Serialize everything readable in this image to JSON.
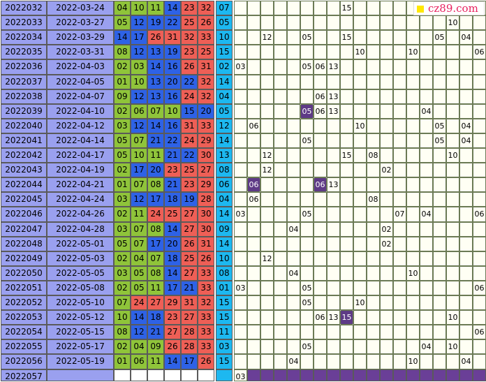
{
  "logo": {
    "text": "cz89.com",
    "square_color": "#ffe800",
    "text_color": "#e8205e"
  },
  "colors": {
    "id_bg": "#9aa0ef",
    "green": "#8fc43a",
    "blue": "#2e62e6",
    "red": "#ee5f56",
    "cyan": "#1db8f0",
    "empty": "#fffff4",
    "highlight": "#5e3a86"
  },
  "rows": [
    {
      "issue": "2022032",
      "date": "2022-03-24",
      "nums": [
        "04",
        "10",
        "11",
        "14",
        "23",
        "32"
      ],
      "blue": "07",
      "colors": [
        "g",
        "g",
        "g",
        "b",
        "r",
        "r"
      ],
      "marks": {
        "8": "15"
      }
    },
    {
      "issue": "2022033",
      "date": "2022-03-27",
      "nums": [
        "05",
        "12",
        "19",
        "22",
        "25",
        "26"
      ],
      "blue": "05",
      "colors": [
        "g",
        "b",
        "b",
        "b",
        "r",
        "r"
      ],
      "marks": {
        "16": "10"
      }
    },
    {
      "issue": "2022034",
      "date": "2022-03-29",
      "nums": [
        "14",
        "17",
        "26",
        "31",
        "32",
        "33"
      ],
      "blue": "10",
      "colors": [
        "b",
        "b",
        "r",
        "r",
        "r",
        "r"
      ],
      "marks": {
        "2": "12",
        "5": "05",
        "8": "15",
        "15": "05",
        "17": "04"
      }
    },
    {
      "issue": "2022035",
      "date": "2022-03-31",
      "nums": [
        "08",
        "12",
        "13",
        "19",
        "23",
        "25"
      ],
      "blue": "15",
      "colors": [
        "g",
        "b",
        "b",
        "b",
        "r",
        "r"
      ],
      "marks": {
        "9": "10",
        "13": "10",
        "18": "06"
      }
    },
    {
      "issue": "2022036",
      "date": "2022-04-03",
      "nums": [
        "02",
        "03",
        "14",
        "16",
        "26",
        "31"
      ],
      "blue": "02",
      "colors": [
        "g",
        "g",
        "b",
        "b",
        "r",
        "r"
      ],
      "marks": {
        "0": "03",
        "5": "05",
        "6": "06",
        "7": "13"
      }
    },
    {
      "issue": "2022037",
      "date": "2022-04-05",
      "nums": [
        "01",
        "10",
        "13",
        "20",
        "22",
        "32"
      ],
      "blue": "14",
      "colors": [
        "g",
        "g",
        "b",
        "b",
        "b",
        "r"
      ],
      "marks": {}
    },
    {
      "issue": "2022038",
      "date": "2022-04-07",
      "nums": [
        "09",
        "12",
        "13",
        "16",
        "24",
        "32"
      ],
      "blue": "04",
      "colors": [
        "g",
        "b",
        "b",
        "b",
        "r",
        "r"
      ],
      "marks": {
        "6": "06",
        "7": "13"
      }
    },
    {
      "issue": "2022039",
      "date": "2022-04-10",
      "nums": [
        "02",
        "06",
        "07",
        "10",
        "15",
        "20"
      ],
      "blue": "05",
      "colors": [
        "g",
        "g",
        "g",
        "g",
        "b",
        "b"
      ],
      "marks": {
        "5": "05",
        "6": "06",
        "7": "13",
        "14": "04"
      },
      "hl": [
        "5"
      ]
    },
    {
      "issue": "2022040",
      "date": "2022-04-12",
      "nums": [
        "03",
        "12",
        "14",
        "16",
        "31",
        "33"
      ],
      "blue": "12",
      "colors": [
        "g",
        "b",
        "b",
        "b",
        "r",
        "r"
      ],
      "marks": {
        "1": "06",
        "9": "10",
        "15": "05",
        "17": "04"
      }
    },
    {
      "issue": "2022041",
      "date": "2022-04-14",
      "nums": [
        "05",
        "07",
        "21",
        "22",
        "24",
        "29"
      ],
      "blue": "14",
      "colors": [
        "g",
        "g",
        "b",
        "b",
        "r",
        "r"
      ],
      "marks": {
        "5": "05",
        "15": "05",
        "17": "04"
      }
    },
    {
      "issue": "2022042",
      "date": "2022-04-17",
      "nums": [
        "05",
        "10",
        "11",
        "21",
        "22",
        "30"
      ],
      "blue": "13",
      "colors": [
        "g",
        "g",
        "g",
        "b",
        "b",
        "r"
      ],
      "marks": {
        "2": "12",
        "8": "15",
        "10": "08",
        "16": "10"
      }
    },
    {
      "issue": "2022043",
      "date": "2022-04-19",
      "nums": [
        "02",
        "17",
        "20",
        "23",
        "25",
        "27"
      ],
      "blue": "08",
      "colors": [
        "g",
        "b",
        "b",
        "r",
        "r",
        "r"
      ],
      "marks": {
        "2": "12",
        "11": "02"
      }
    },
    {
      "issue": "2022044",
      "date": "2022-04-21",
      "nums": [
        "01",
        "07",
        "08",
        "21",
        "23",
        "29"
      ],
      "blue": "06",
      "colors": [
        "g",
        "g",
        "g",
        "b",
        "r",
        "r"
      ],
      "marks": {
        "1": "06",
        "6": "06",
        "7": "13"
      },
      "hl": [
        "1",
        "6"
      ]
    },
    {
      "issue": "2022045",
      "date": "2022-04-24",
      "nums": [
        "03",
        "12",
        "17",
        "18",
        "19",
        "28"
      ],
      "blue": "04",
      "colors": [
        "g",
        "b",
        "b",
        "b",
        "b",
        "r"
      ],
      "marks": {
        "1": "06",
        "10": "08"
      }
    },
    {
      "issue": "2022046",
      "date": "2022-04-26",
      "nums": [
        "02",
        "11",
        "24",
        "25",
        "27",
        "30"
      ],
      "blue": "14",
      "colors": [
        "g",
        "g",
        "r",
        "r",
        "r",
        "r"
      ],
      "marks": {
        "0": "03",
        "5": "05",
        "12": "07",
        "14": "04",
        "18": "06"
      }
    },
    {
      "issue": "2022047",
      "date": "2022-04-28",
      "nums": [
        "03",
        "07",
        "08",
        "14",
        "27",
        "30"
      ],
      "blue": "09",
      "colors": [
        "g",
        "g",
        "g",
        "b",
        "r",
        "r"
      ],
      "marks": {
        "4": "04",
        "11": "02"
      }
    },
    {
      "issue": "2022048",
      "date": "2022-05-01",
      "nums": [
        "05",
        "07",
        "17",
        "20",
        "26",
        "31"
      ],
      "blue": "14",
      "colors": [
        "g",
        "g",
        "b",
        "b",
        "r",
        "r"
      ],
      "marks": {
        "11": "02"
      }
    },
    {
      "issue": "2022049",
      "date": "2022-05-03",
      "nums": [
        "02",
        "04",
        "07",
        "18",
        "25",
        "26"
      ],
      "blue": "10",
      "colors": [
        "g",
        "g",
        "g",
        "b",
        "r",
        "r"
      ],
      "marks": {
        "2": "12"
      }
    },
    {
      "issue": "2022050",
      "date": "2022-05-05",
      "nums": [
        "03",
        "05",
        "08",
        "14",
        "27",
        "33"
      ],
      "blue": "08",
      "colors": [
        "g",
        "g",
        "g",
        "b",
        "r",
        "r"
      ],
      "marks": {
        "4": "04",
        "13": "10"
      }
    },
    {
      "issue": "2022051",
      "date": "2022-05-08",
      "nums": [
        "02",
        "05",
        "11",
        "17",
        "21",
        "33"
      ],
      "blue": "01",
      "colors": [
        "g",
        "g",
        "g",
        "b",
        "b",
        "r"
      ],
      "marks": {
        "0": "03",
        "5": "05",
        "18": "06"
      }
    },
    {
      "issue": "2022052",
      "date": "2022-05-10",
      "nums": [
        "07",
        "24",
        "27",
        "29",
        "31",
        "32"
      ],
      "blue": "15",
      "colors": [
        "g",
        "r",
        "r",
        "r",
        "r",
        "r"
      ],
      "marks": {
        "5": "05",
        "9": "10"
      }
    },
    {
      "issue": "2022053",
      "date": "2022-05-12",
      "nums": [
        "10",
        "14",
        "18",
        "23",
        "27",
        "33"
      ],
      "blue": "15",
      "colors": [
        "g",
        "b",
        "b",
        "r",
        "r",
        "r"
      ],
      "marks": {
        "6": "06",
        "7": "13",
        "8": "15",
        "16": "10"
      },
      "hl": [
        "8"
      ]
    },
    {
      "issue": "2022054",
      "date": "2022-05-15",
      "nums": [
        "08",
        "12",
        "21",
        "27",
        "28",
        "33"
      ],
      "blue": "11",
      "colors": [
        "g",
        "b",
        "b",
        "r",
        "r",
        "r"
      ],
      "marks": {
        "18": "06"
      }
    },
    {
      "issue": "2022055",
      "date": "2022-05-17",
      "nums": [
        "02",
        "04",
        "09",
        "26",
        "28",
        "33"
      ],
      "blue": "03",
      "colors": [
        "g",
        "g",
        "g",
        "r",
        "r",
        "r"
      ],
      "marks": {
        "5": "05",
        "14": "04",
        "16": "10"
      }
    },
    {
      "issue": "2022056",
      "date": "2022-05-19",
      "nums": [
        "01",
        "06",
        "11",
        "14",
        "17",
        "26"
      ],
      "blue": "15",
      "colors": [
        "g",
        "g",
        "g",
        "b",
        "b",
        "r"
      ],
      "marks": {
        "4": "04",
        "13": "10",
        "17": "04"
      }
    }
  ],
  "last_row": {
    "issue": "2022057",
    "date": "",
    "blue": "",
    "first_mark": "03"
  }
}
